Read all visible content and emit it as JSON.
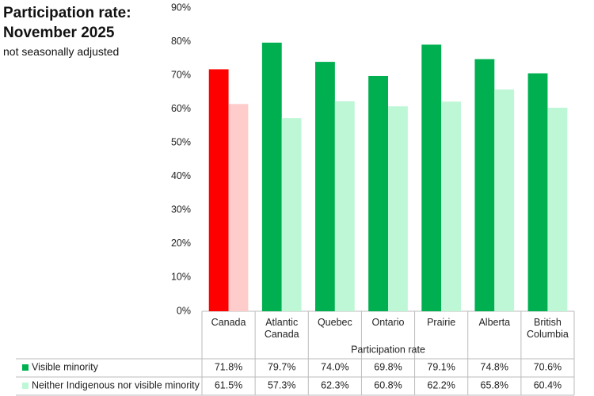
{
  "chart_data": {
    "type": "bar",
    "title": "Participation rate: November 2025",
    "subtitle": "not seasonally adjusted",
    "x_label": "Participation rate",
    "categories": [
      "Canada",
      "Atlantic Canada",
      "Quebec",
      "Ontario",
      "Prairie",
      "Alberta",
      "British Columbia"
    ],
    "series": [
      {
        "name": "Visible minority",
        "color": "#00b050",
        "colors": [
          "#ff0000",
          "#00b050",
          "#00b050",
          "#00b050",
          "#00b050",
          "#00b050",
          "#00b050"
        ],
        "values": [
          71.8,
          79.7,
          74.0,
          69.8,
          79.1,
          74.8,
          70.6
        ],
        "value_labels": [
          "71.8%",
          "79.7%",
          "74.0%",
          "69.8%",
          "79.1%",
          "74.8%",
          "70.6%"
        ]
      },
      {
        "name": "Neither Indigenous nor visible minority",
        "color": "#bdf7d6",
        "colors": [
          "#ffcccc",
          "#bdf7d6",
          "#bdf7d6",
          "#bdf7d6",
          "#bdf7d6",
          "#bdf7d6",
          "#bdf7d6"
        ],
        "values": [
          61.5,
          57.3,
          62.3,
          60.8,
          62.2,
          65.8,
          60.4
        ],
        "value_labels": [
          "61.5%",
          "57.3%",
          "62.3%",
          "60.8%",
          "62.2%",
          "65.8%",
          "60.4%"
        ]
      }
    ],
    "ylim": [
      0,
      90
    ],
    "yticks": [
      {
        "value": 0,
        "label": "0%"
      },
      {
        "value": 10,
        "label": "10%"
      },
      {
        "value": 20,
        "label": "20%"
      },
      {
        "value": 30,
        "label": "30%"
      },
      {
        "value": 40,
        "label": "40%"
      },
      {
        "value": 50,
        "label": "50%"
      },
      {
        "value": 60,
        "label": "60%"
      },
      {
        "value": 70,
        "label": "70%"
      },
      {
        "value": 80,
        "label": "80%"
      },
      {
        "value": 90,
        "label": "90%"
      }
    ],
    "grid": false
  }
}
